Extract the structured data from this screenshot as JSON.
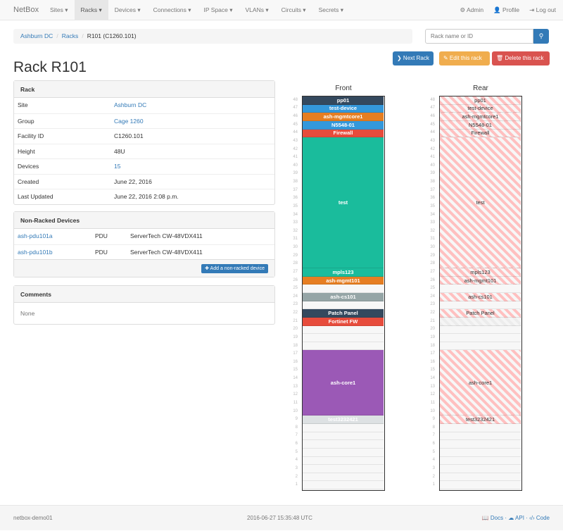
{
  "nav": {
    "brand": "NetBox",
    "items": [
      "Sites ▾",
      "Racks ▾",
      "Devices ▾",
      "Connections ▾",
      "IP Space ▾",
      "VLANs ▾",
      "Circuits ▾",
      "Secrets ▾"
    ],
    "active": 1,
    "admin": "⚙ Admin",
    "profile": "👤 Profile",
    "logout": "⇥ Log out"
  },
  "breadcrumb": [
    "Ashburn DC",
    "Racks",
    "R101 (C1260.101)"
  ],
  "search": {
    "placeholder": "Rack name or ID",
    "icon": "search-icon"
  },
  "actions": {
    "next": "❯ Next Rack",
    "edit": "✎ Edit this rack",
    "delete": "🗑 Delete this rack",
    "colors": {
      "next": "#337ab7",
      "edit": "#f0ad4e",
      "delete": "#d9534f"
    }
  },
  "title": "Rack R101",
  "rack_panel": {
    "heading": "Rack",
    "rows": [
      {
        "key": "Site",
        "value": "Ashburn DC",
        "link": true
      },
      {
        "key": "Group",
        "value": "Cage 1260",
        "link": true
      },
      {
        "key": "Facility ID",
        "value": "C1260.101",
        "link": false
      },
      {
        "key": "Height",
        "value": "48U",
        "link": false
      },
      {
        "key": "Devices",
        "value": "15",
        "link": true
      },
      {
        "key": "Created",
        "value": "June 22, 2016",
        "link": false
      },
      {
        "key": "Last Updated",
        "value": "June 22, 2016 2:08 p.m.",
        "link": false
      }
    ]
  },
  "nonracked": {
    "heading": "Non-Racked Devices",
    "rows": [
      {
        "name": "ash-pdu101a",
        "role": "PDU",
        "type": "ServerTech CW-48VDX411"
      },
      {
        "name": "ash-pdu101b",
        "role": "PDU",
        "type": "ServerTech CW-48VDX411"
      }
    ],
    "add_button": "✚ Add a non-racked device"
  },
  "comments": {
    "heading": "Comments",
    "body": "None"
  },
  "elevation": {
    "front_label": "Front",
    "rear_label": "Rear",
    "units": 48,
    "devices": [
      {
        "name": "pp01",
        "top": 48,
        "height": 1,
        "color": "#34495e",
        "rear": true
      },
      {
        "name": "test-device",
        "top": 47,
        "height": 1,
        "color": "#3498db",
        "rear": true
      },
      {
        "name": "ash-mgmtcore1",
        "top": 46,
        "height": 1,
        "color": "#e67e22",
        "rear": true
      },
      {
        "name": "N5548-01",
        "top": 45,
        "height": 1,
        "color": "#3498db",
        "rear": true
      },
      {
        "name": "Firewall",
        "top": 44,
        "height": 1,
        "color": "#e74c3c",
        "rear": true
      },
      {
        "name": "test",
        "top": 43,
        "height": 16,
        "color": "#1abc9c",
        "rear": true
      },
      {
        "name": "mpls123",
        "top": 27,
        "height": 1,
        "color": "#1abc9c",
        "rear": true
      },
      {
        "name": "ash-mgmt101",
        "top": 26,
        "height": 1,
        "color": "#e67e22",
        "rear": true
      },
      {
        "name": "ash-cs101",
        "top": 24,
        "height": 1,
        "color": "#95a5a6",
        "rear": true
      },
      {
        "name": "Patch Panel",
        "top": 22,
        "height": 1,
        "color": "#34495e",
        "rear": true
      },
      {
        "name": "Fortinet FW",
        "top": 21,
        "height": 1,
        "color": "#e74c3c",
        "rear": false
      },
      {
        "name": "ash-core1",
        "top": 17,
        "height": 8,
        "color": "#9b59b6",
        "rear": true
      },
      {
        "name": "test3232421",
        "top": 9,
        "height": 1,
        "color": "#dde1e3",
        "rear": true
      }
    ]
  },
  "footer": {
    "host": "netbox-demo01",
    "time": "2016-06-27 15:35:48 UTC",
    "docs": "📖 Docs",
    "api": "☁ API",
    "code": "‹/› Code",
    "sep": "·"
  }
}
